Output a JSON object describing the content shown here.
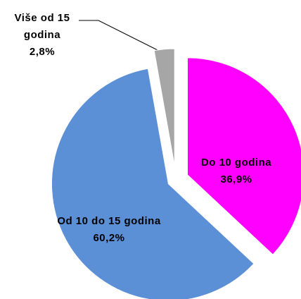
{
  "chart_data": {
    "type": "pie",
    "categories": [
      "Do 10 godina",
      "Od 10 do 15 godina",
      "Više od 15 godina"
    ],
    "values": [
      36.9,
      60.2,
      2.8
    ],
    "value_labels": [
      "36,9%",
      "60,2%",
      "2,8%"
    ],
    "colors": [
      "#ff00ff",
      "#5b8fd6",
      "#a6a6a6"
    ]
  }
}
